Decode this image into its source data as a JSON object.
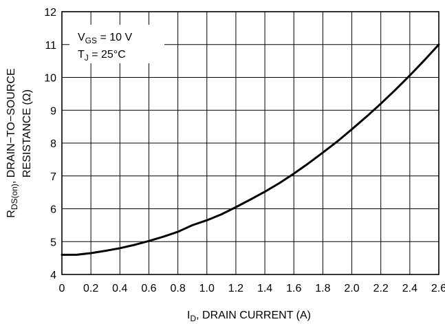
{
  "chart_data": {
    "type": "line",
    "xlabel": {
      "main": "I",
      "sub": "D",
      "rest": ", DRAIN CURRENT (A)"
    },
    "ylabel": {
      "line1_main": "R",
      "line1_sub": "DS(on)",
      "line1_rest": ", DRAIN−TO−SOURCE",
      "line2": "RESISTANCE (Ω)"
    },
    "xlim": [
      0,
      2.6
    ],
    "ylim": [
      4,
      12
    ],
    "x_ticks": [
      0,
      0.2,
      0.4,
      0.6,
      0.8,
      1.0,
      1.2,
      1.4,
      1.6,
      1.8,
      2.0,
      2.2,
      2.4,
      2.6
    ],
    "x_tick_labels": [
      "0",
      "0.2",
      "0.4",
      "0.6",
      "0.8",
      "1.0",
      "1.2",
      "1.4",
      "1.6",
      "1.8",
      "2.0",
      "2.2",
      "2.4",
      "2.6"
    ],
    "y_ticks": [
      4,
      5,
      6,
      7,
      8,
      9,
      10,
      11,
      12
    ],
    "y_tick_labels": [
      "4",
      "5",
      "6",
      "7",
      "8",
      "9",
      "10",
      "11",
      "12"
    ],
    "grid": true,
    "annotations": {
      "vgs": {
        "main": "V",
        "sub": "GS",
        "rest": " = 10 V"
      },
      "tj": {
        "main": "T",
        "sub": "J",
        "rest": " = 25°C"
      }
    },
    "series": [
      {
        "x": [
          0,
          0.1,
          0.2,
          0.3,
          0.4,
          0.5,
          0.6,
          0.7,
          0.8,
          0.9,
          1.0,
          1.1,
          1.2,
          1.3,
          1.4,
          1.5,
          1.6,
          1.7,
          1.8,
          1.9,
          2.0,
          2.1,
          2.2,
          2.3,
          2.4,
          2.5,
          2.6
        ],
        "y": [
          4.6,
          4.6,
          4.65,
          4.72,
          4.8,
          4.9,
          5.02,
          5.15,
          5.3,
          5.5,
          5.65,
          5.83,
          6.05,
          6.28,
          6.52,
          6.78,
          7.07,
          7.38,
          7.71,
          8.05,
          8.42,
          8.8,
          9.2,
          9.62,
          10.06,
          10.52,
          11.0
        ]
      }
    ]
  }
}
